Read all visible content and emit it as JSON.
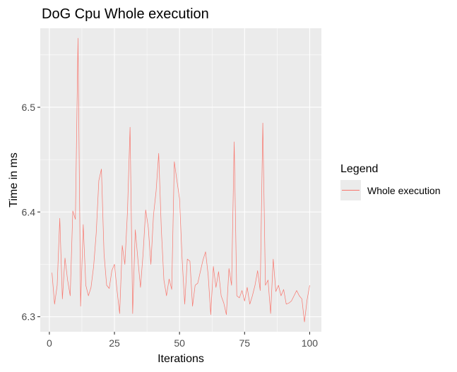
{
  "chart_data": {
    "type": "line",
    "title": "DoG Cpu Whole execution",
    "xlabel": "Iterations",
    "ylabel": "Time in ms",
    "xlim": [
      -3.5,
      104.5
    ],
    "ylim": [
      6.2856,
      6.5755
    ],
    "x_ticks": [
      0,
      25,
      50,
      75,
      100
    ],
    "x_tick_labels": [
      "0",
      "25",
      "50",
      "75",
      "100"
    ],
    "y_ticks": [
      6.3,
      6.4,
      6.5
    ],
    "y_tick_labels": [
      "6.3",
      "6.4",
      "6.5"
    ],
    "grid": true,
    "legend": {
      "title": "Legend",
      "position": "right"
    },
    "series": [
      {
        "name": "Whole execution",
        "color": "#f8766d",
        "x": [
          1,
          2,
          3,
          4,
          5,
          6,
          7,
          8,
          9,
          10,
          11,
          12,
          13,
          14,
          15,
          16,
          17,
          18,
          19,
          20,
          21,
          22,
          23,
          24,
          25,
          26,
          27,
          28,
          29,
          30,
          31,
          32,
          33,
          34,
          35,
          36,
          37,
          38,
          39,
          40,
          41,
          42,
          43,
          44,
          45,
          46,
          47,
          48,
          49,
          50,
          51,
          52,
          53,
          54,
          55,
          56,
          57,
          58,
          59,
          60,
          61,
          62,
          63,
          64,
          65,
          66,
          67,
          68,
          69,
          70,
          71,
          72,
          73,
          74,
          75,
          76,
          77,
          78,
          79,
          80,
          81,
          82,
          83,
          84,
          85,
          86,
          87,
          88,
          89,
          90,
          91,
          92,
          93,
          94,
          95,
          96,
          97,
          98,
          99,
          100
        ],
        "values": [
          6.342,
          6.312,
          6.33,
          6.394,
          6.317,
          6.356,
          6.335,
          6.32,
          6.401,
          6.393,
          6.566,
          6.31,
          6.388,
          6.33,
          6.32,
          6.328,
          6.348,
          6.38,
          6.43,
          6.441,
          6.36,
          6.33,
          6.327,
          6.344,
          6.35,
          6.325,
          6.303,
          6.368,
          6.35,
          6.4,
          6.481,
          6.303,
          6.383,
          6.355,
          6.328,
          6.36,
          6.402,
          6.385,
          6.35,
          6.397,
          6.42,
          6.456,
          6.384,
          6.335,
          6.32,
          6.336,
          6.326,
          6.448,
          6.43,
          6.413,
          6.355,
          6.312,
          6.355,
          6.353,
          6.31,
          6.33,
          6.332,
          6.343,
          6.354,
          6.362,
          6.34,
          6.302,
          6.348,
          6.328,
          6.343,
          6.32,
          6.313,
          6.302,
          6.346,
          6.33,
          6.467,
          6.32,
          6.318,
          6.325,
          6.315,
          6.328,
          6.312,
          6.32,
          6.33,
          6.344,
          6.325,
          6.485,
          6.33,
          6.335,
          6.303,
          6.355,
          6.324,
          6.33,
          6.32,
          6.326,
          6.312,
          6.313,
          6.315,
          6.32,
          6.325,
          6.32,
          6.317,
          6.295,
          6.316,
          6.33
        ]
      }
    ]
  }
}
